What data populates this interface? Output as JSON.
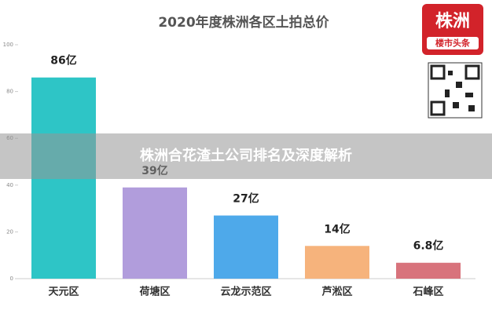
{
  "chart_data": {
    "type": "bar",
    "title": "2020年度株洲各区土拍总价",
    "categories": [
      "天元区",
      "荷塘区",
      "云龙示范区",
      "芦淞区",
      "石峰区"
    ],
    "values": [
      86,
      39,
      27,
      14,
      6.8
    ],
    "value_labels": [
      "86亿",
      "39亿",
      "27亿",
      "14亿",
      "6.8亿"
    ],
    "colors": [
      "#2ec5c6",
      "#b19ddc",
      "#4ea9ea",
      "#f6b37c",
      "#d8737c"
    ],
    "ylim": [
      0,
      100
    ],
    "yticks": [
      0,
      20,
      40,
      60,
      80,
      100
    ]
  },
  "banner": "株洲合花渣土公司排名及深度解析",
  "logo": {
    "name": "株洲",
    "subtitle": "楼市头条"
  }
}
